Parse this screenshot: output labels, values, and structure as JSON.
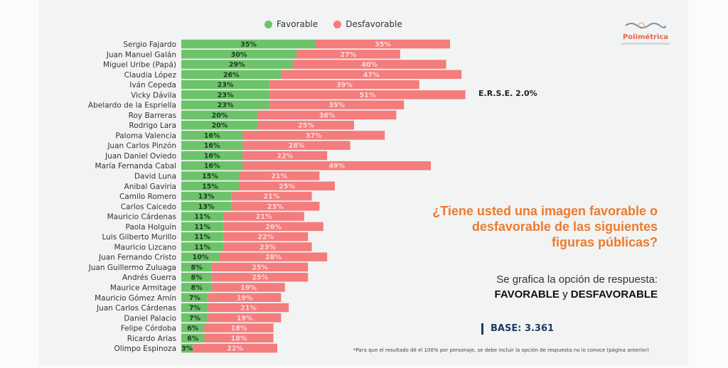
{
  "chart_data": {
    "type": "bar",
    "stacked": true,
    "orientation": "horizontal",
    "categories": [
      "Sergio Fajardo",
      "Juan Manuel Galán",
      "Miguel Uribe (Papá)",
      "Claudia López",
      "Iván Cepeda",
      "Vicky Dávila",
      "Abelardo de la Espriella",
      "Roy Barreras",
      "Rodrigo Lara",
      "Paloma Valencia",
      "Juan Carlos Pinzón",
      "Juan Daniel Oviedo",
      "María Fernanda Cabal",
      "David Luna",
      "Anibal Gaviria",
      "Camilo Romero",
      "Carlos Caicedo",
      "Mauricio Cárdenas",
      "Paola Holguín",
      "Luis Gilberto Murillo",
      "Mauricio Lizcano",
      "Juan Fernando Cristo",
      "Juan Guillermo Zuluaga",
      "Andrés Guerra",
      "Maurice Armitage",
      "Mauricio Gómez Amín",
      "Juan Carlos Cárdenas",
      "Daniel Palacio",
      "Felipe Córdoba",
      "Ricardo Arias",
      "Olimpo Espinoza"
    ],
    "series": [
      {
        "name": "Favorable",
        "color": "#6cc36a",
        "values": [
          35,
          30,
          29,
          26,
          23,
          23,
          23,
          20,
          20,
          16,
          16,
          16,
          16,
          15,
          15,
          13,
          13,
          11,
          11,
          11,
          11,
          10,
          8,
          8,
          8,
          7,
          7,
          7,
          6,
          6,
          3
        ]
      },
      {
        "name": "Desfavorable",
        "color": "#f47c7c",
        "values": [
          35,
          27,
          40,
          47,
          39,
          51,
          35,
          36,
          25,
          37,
          28,
          22,
          49,
          21,
          25,
          21,
          23,
          21,
          26,
          22,
          23,
          28,
          25,
          25,
          19,
          19,
          21,
          19,
          18,
          18,
          22
        ]
      }
    ],
    "legend": "top",
    "grid": false
  },
  "legend": {
    "favorable": "Favorable",
    "desfavorable": "Desfavorable"
  },
  "logo": {
    "text": "Polimétrica"
  },
  "erse": "E.R.S.E. 2.0%",
  "question": "¿Tiene usted una imagen favorable o desfavorable de las siguientes figuras públicas?",
  "note": {
    "line1": "Se grafica la opción de respuesta:",
    "fav": "FAVORABLE",
    "y": " y ",
    "desfav": "DESFAVORABLE"
  },
  "base": "BASE: 3.361",
  "footnote": "*Para que el resultado dé el 100% por personaje, se debe incluir la opción de respuesta no lo conoce (página anterior)"
}
